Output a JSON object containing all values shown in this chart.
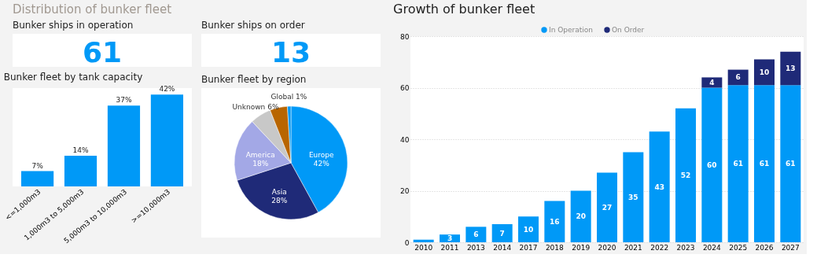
{
  "chart_data": [
    {
      "type": "other",
      "title": "Distribution of bunker fleet"
    },
    {
      "type": "other",
      "title": "Bunker ships in operation",
      "annotations": [
        "61"
      ],
      "color": "#0099f7"
    },
    {
      "type": "other",
      "title": "Bunker ships on order",
      "annotations": [
        "13"
      ],
      "color": "#0099f7"
    },
    {
      "type": "bar",
      "title": "Bunker fleet by tank capacity",
      "categories": [
        "<=1,000m3",
        "1,000m3 to 5,000m3",
        "5,000m3 to 10,000m3",
        ">=10,000m3"
      ],
      "values": [
        7,
        14,
        37,
        42
      ],
      "value_labels": [
        "7%",
        "14%",
        "37%",
        "42%"
      ],
      "color": "#0099f7"
    },
    {
      "type": "pie",
      "title": "Bunker fleet by region",
      "categories": [
        "Europe",
        "Asia",
        "America",
        "Unknown",
        null,
        "Global"
      ],
      "values": [
        42,
        28,
        18,
        6,
        5,
        1
      ],
      "value_labels": [
        "42%",
        "28%",
        "18%",
        "6%",
        null,
        "1%"
      ],
      "colors": [
        "#0099f7",
        "#1f2a78",
        "#a3a8e6",
        "#c8c8c8",
        "#b86500",
        "#0099f7"
      ]
    },
    {
      "type": "bar",
      "title": "Growth of bunker fleet",
      "stacked": true,
      "categories": [
        "2010",
        "2011",
        "2013",
        "2014",
        "2017",
        "2018",
        "2019",
        "2020",
        "2021",
        "2022",
        "2023",
        "2024",
        "2025",
        "2026",
        "2027"
      ],
      "series": [
        {
          "name": "In Operation",
          "color": "#0099f7",
          "values": [
            1,
            3,
            6,
            7,
            10,
            16,
            20,
            27,
            35,
            43,
            52,
            60,
            61,
            61,
            61
          ],
          "value_labels": [
            null,
            "3",
            "6",
            "7",
            "10",
            "16",
            "20",
            "27",
            "35",
            "43",
            "52",
            "60",
            "61",
            "61",
            "61"
          ]
        },
        {
          "name": "On Order",
          "color": "#1f2a78",
          "values": [
            null,
            null,
            null,
            null,
            null,
            null,
            null,
            null,
            null,
            null,
            null,
            4,
            6,
            10,
            13
          ],
          "value_labels": [
            null,
            null,
            null,
            null,
            null,
            null,
            null,
            null,
            null,
            null,
            null,
            "4",
            "6",
            "10",
            "13"
          ]
        }
      ],
      "ylim": [
        0,
        80
      ],
      "yticks": [
        0,
        20,
        40,
        60,
        80
      ],
      "grid": "y",
      "legend": "top"
    }
  ]
}
